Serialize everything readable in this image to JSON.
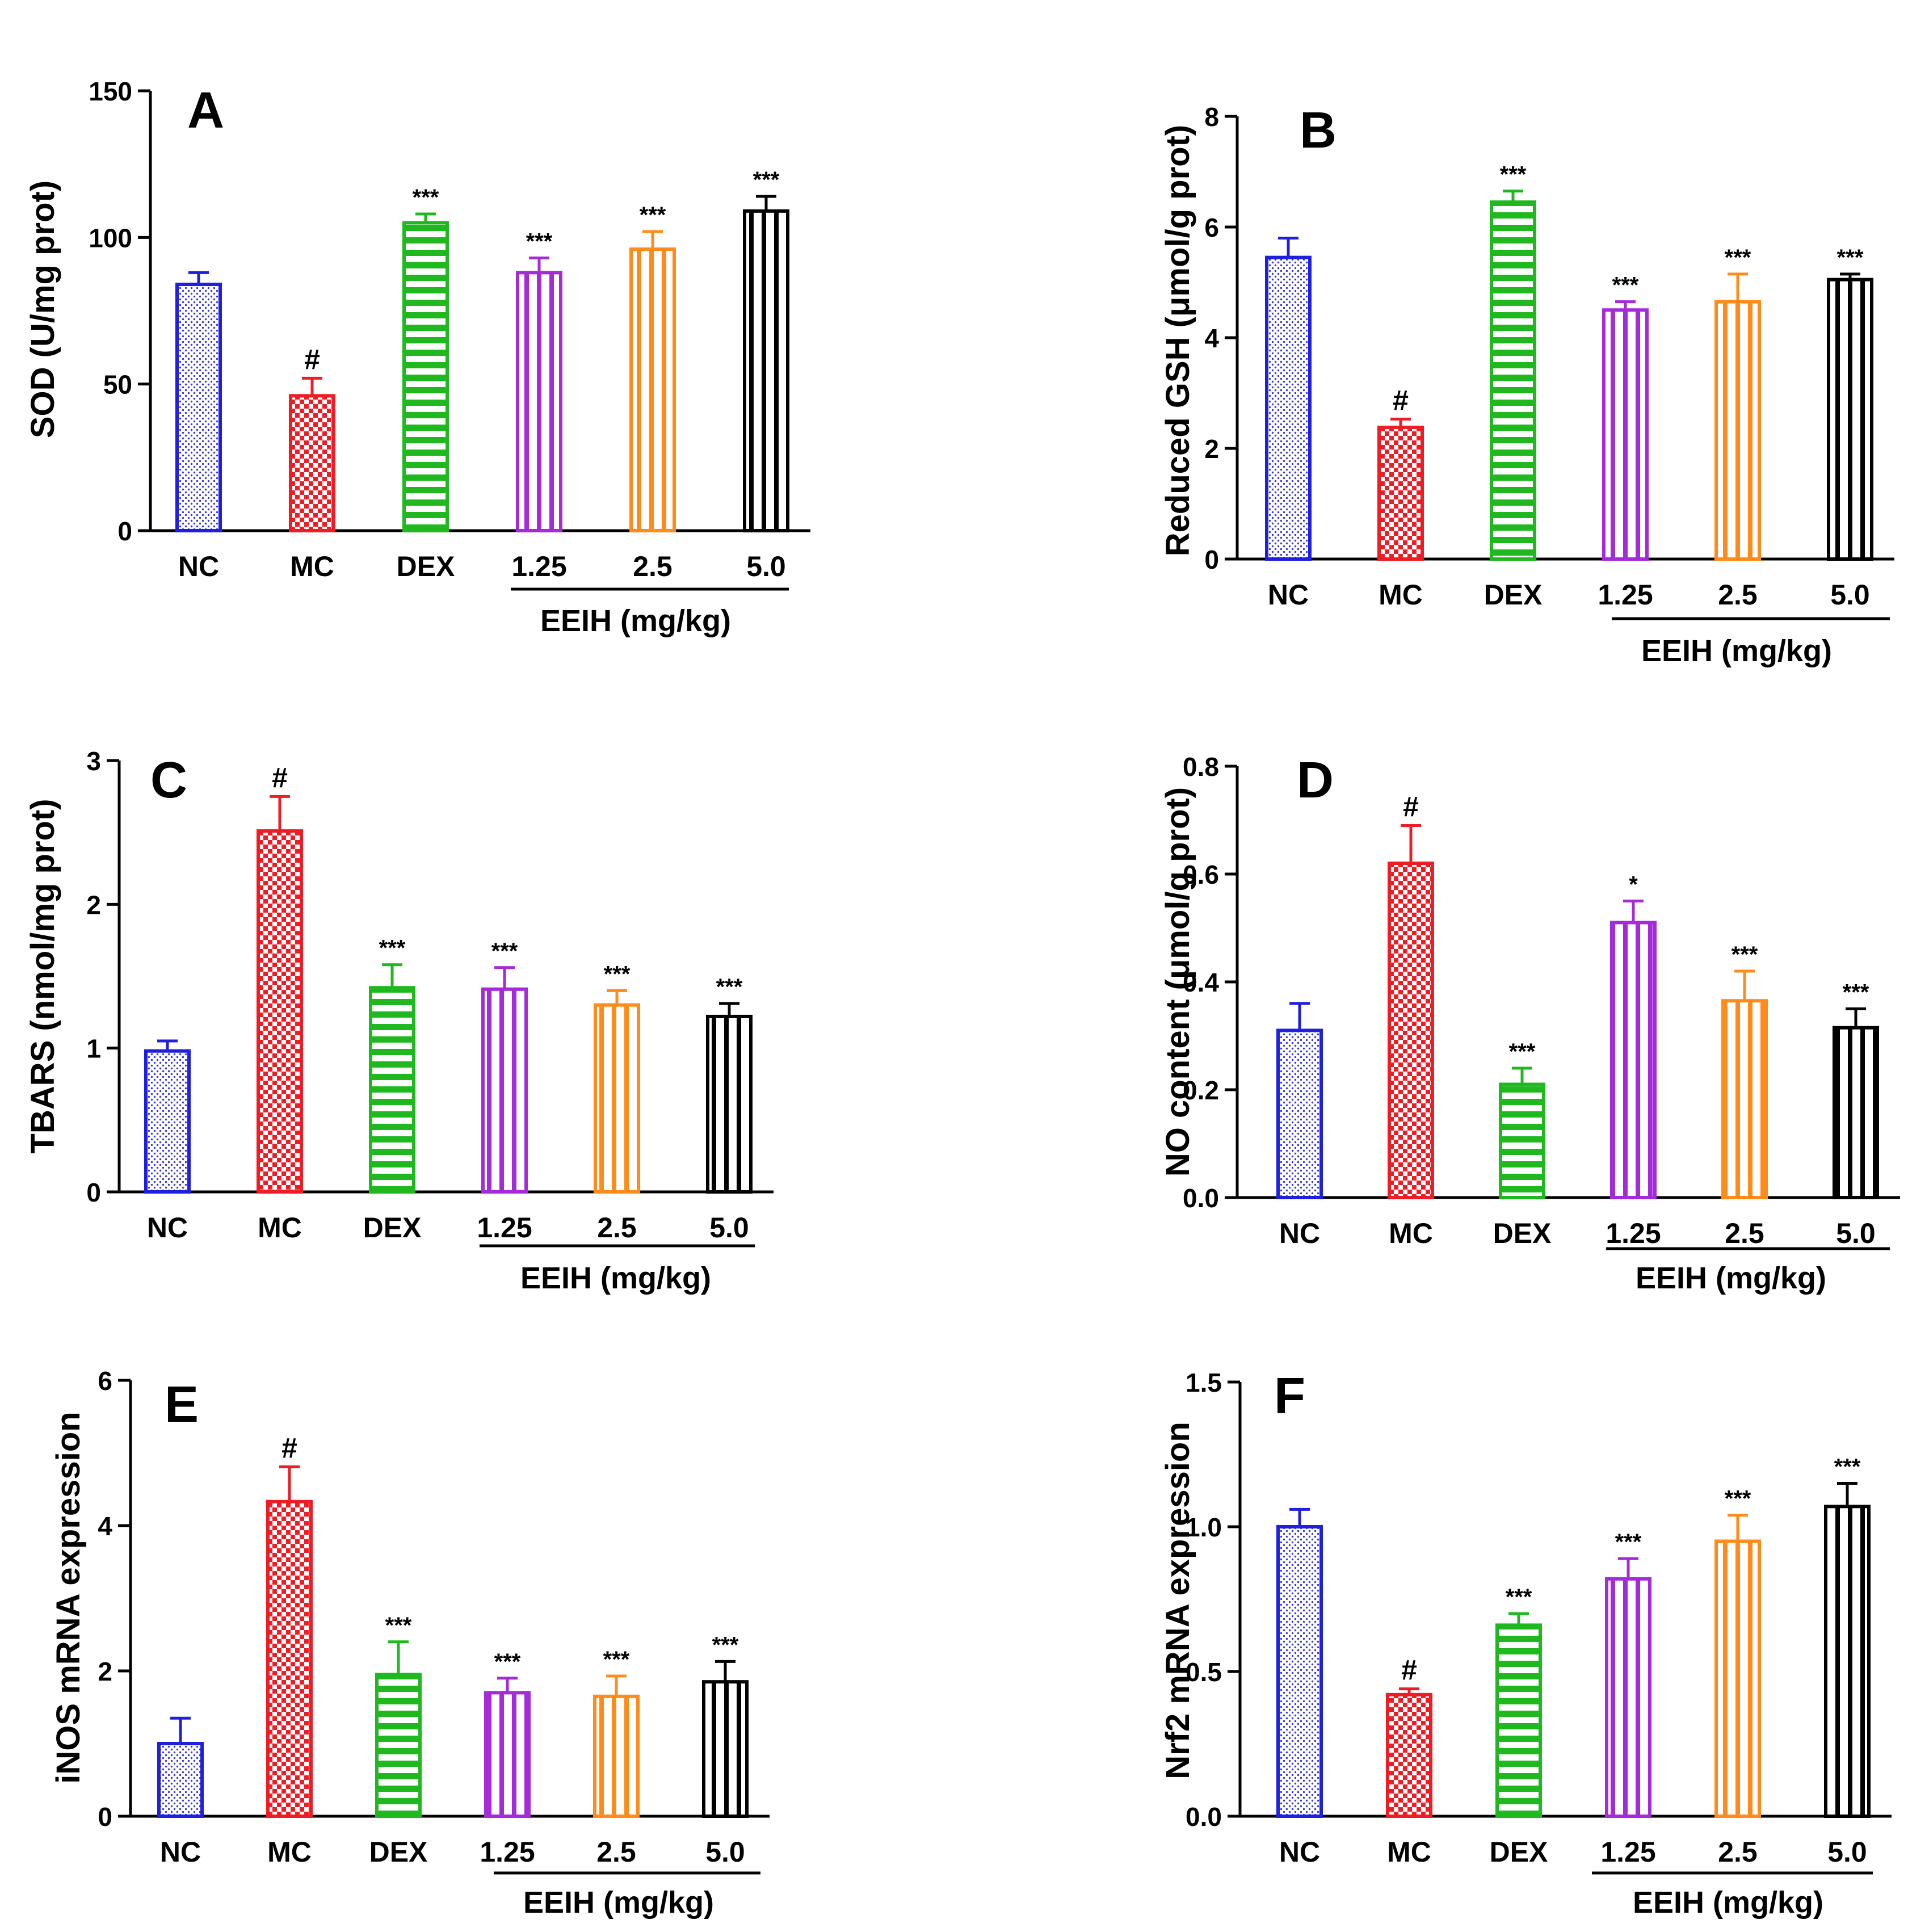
{
  "colors": {
    "nc": "#1f1fe0",
    "mc": "#ee1c24",
    "dex": "#1fb81f",
    "eeih_low": "#a52ad8",
    "eeih_mid": "#ff8c1a",
    "eeih_high": "#000000",
    "axis": "#000000"
  },
  "group_colors": [
    "#1f1fe0",
    "#ee1c24",
    "#1fb81f",
    "#a52ad8",
    "#ff8c1a",
    "#000000"
  ],
  "group_patterns": [
    "dots",
    "checker",
    "hstripes",
    "vstripes",
    "vstripes",
    "vstripes"
  ],
  "chart_data": [
    {
      "id": "A",
      "panel_label": "A",
      "type": "bar",
      "ylabel": "SOD (U/mg prot)",
      "ylim": [
        0,
        150
      ],
      "yticks": [
        "0",
        "50",
        "100",
        "150"
      ],
      "categories": [
        "NC",
        "MC",
        "DEX",
        "1.25",
        "2.5",
        "5.0"
      ],
      "group_label": "EEIH (mg/kg)",
      "values": [
        84,
        46,
        105,
        88,
        96,
        109
      ],
      "errors": [
        4,
        6,
        3,
        5,
        6,
        5
      ],
      "annotations": [
        "",
        "#",
        "***",
        "***",
        "***",
        "***"
      ]
    },
    {
      "id": "B",
      "panel_label": "B",
      "type": "bar",
      "ylabel": "Reduced GSH (μmol/g prot)",
      "ylim": [
        0,
        8
      ],
      "yticks": [
        "0",
        "2",
        "4",
        "6",
        "8"
      ],
      "categories": [
        "NC",
        "MC",
        "DEX",
        "1.25",
        "2.5",
        "5.0"
      ],
      "group_label": "EEIH (mg/kg)",
      "values": [
        5.45,
        2.38,
        6.45,
        4.5,
        4.65,
        5.05
      ],
      "errors": [
        0.35,
        0.15,
        0.2,
        0.15,
        0.5,
        0.1
      ],
      "annotations": [
        "",
        "#",
        "***",
        "***",
        "***",
        "***"
      ]
    },
    {
      "id": "C",
      "panel_label": "C",
      "type": "bar",
      "ylabel": "TBARS (nmol/mg prot)",
      "ylim": [
        0,
        3
      ],
      "yticks": [
        "0",
        "1",
        "2",
        "3"
      ],
      "categories": [
        "NC",
        "MC",
        "DEX",
        "1.25",
        "2.5",
        "5.0"
      ],
      "group_label": "EEIH (mg/kg)",
      "values": [
        0.98,
        2.51,
        1.42,
        1.41,
        1.3,
        1.22
      ],
      "errors": [
        0.07,
        0.24,
        0.16,
        0.15,
        0.1,
        0.09
      ],
      "annotations": [
        "",
        "#",
        "***",
        "***",
        "***",
        "***"
      ]
    },
    {
      "id": "D",
      "panel_label": "D",
      "type": "bar",
      "ylabel": "NO content (μmol/g prot)",
      "ylim": [
        0,
        0.8
      ],
      "yticks": [
        "0.0",
        "0.2",
        "0.4",
        "0.6",
        "0.8"
      ],
      "categories": [
        "NC",
        "MC",
        "DEX",
        "1.25",
        "2.5",
        "5.0"
      ],
      "group_label": "EEIH (mg/kg)",
      "values": [
        0.31,
        0.62,
        0.21,
        0.51,
        0.365,
        0.315
      ],
      "errors": [
        0.05,
        0.07,
        0.03,
        0.04,
        0.055,
        0.035
      ],
      "annotations": [
        "",
        "#",
        "***",
        "*",
        "***",
        "***"
      ]
    },
    {
      "id": "E",
      "panel_label": "E",
      "type": "bar",
      "ylabel": "iNOS mRNA expression",
      "ylim": [
        0,
        6
      ],
      "yticks": [
        "0",
        "2",
        "4",
        "6"
      ],
      "categories": [
        "NC",
        "MC",
        "DEX",
        "1.25",
        "2.5",
        "5.0"
      ],
      "group_label": "EEIH (mg/kg)",
      "values": [
        1.0,
        4.33,
        1.95,
        1.7,
        1.65,
        1.85
      ],
      "errors": [
        0.35,
        0.48,
        0.45,
        0.2,
        0.28,
        0.28
      ],
      "annotations": [
        "",
        "#",
        "***",
        "***",
        "***",
        "***"
      ]
    },
    {
      "id": "F",
      "panel_label": "F",
      "type": "bar",
      "ylabel": "Nrf2 mRNA expression",
      "ylim": [
        0,
        1.5
      ],
      "yticks": [
        "0.0",
        "0.5",
        "1.0",
        "1.5"
      ],
      "categories": [
        "NC",
        "MC",
        "DEX",
        "1.25",
        "2.5",
        "5.0"
      ],
      "group_label": "EEIH (mg/kg)",
      "values": [
        1.0,
        0.42,
        0.66,
        0.82,
        0.95,
        1.07
      ],
      "errors": [
        0.06,
        0.02,
        0.04,
        0.07,
        0.09,
        0.08
      ],
      "annotations": [
        "",
        "#",
        "***",
        "***",
        "***",
        "***"
      ]
    }
  ]
}
